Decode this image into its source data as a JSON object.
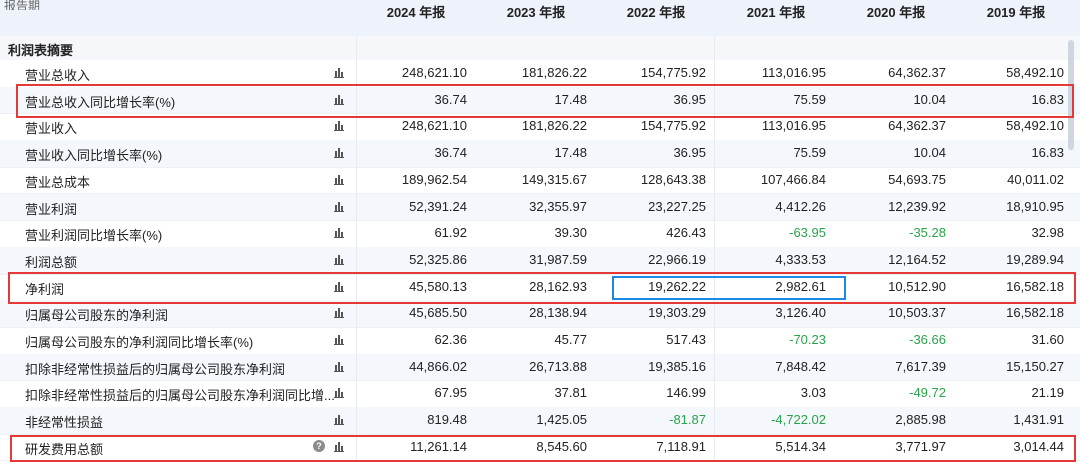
{
  "header": {
    "top_left_clipped": "报告期",
    "years": [
      "2024 年报",
      "2023 年报",
      "2022 年报",
      "2021 年报",
      "2020 年报",
      "2019 年报"
    ]
  },
  "section_title": "利润表摘要",
  "rows": [
    {
      "label": "营业总收入",
      "values": [
        "248,621.10",
        "181,826.22",
        "154,775.92",
        "113,016.95",
        "64,362.37",
        "58,492.10"
      ],
      "highlight": false
    },
    {
      "label": "营业总收入同比增长率(%)",
      "values": [
        "36.74",
        "17.48",
        "36.95",
        "75.59",
        "10.04",
        "16.83"
      ],
      "highlight": true
    },
    {
      "label": "营业收入",
      "values": [
        "248,621.10",
        "181,826.22",
        "154,775.92",
        "113,016.95",
        "64,362.37",
        "58,492.10"
      ],
      "highlight": false
    },
    {
      "label": "营业收入同比增长率(%)",
      "values": [
        "36.74",
        "17.48",
        "36.95",
        "75.59",
        "10.04",
        "16.83"
      ],
      "highlight": false
    },
    {
      "label": "营业总成本",
      "values": [
        "189,962.54",
        "149,315.67",
        "128,643.38",
        "107,466.84",
        "54,693.75",
        "40,011.02"
      ],
      "highlight": false
    },
    {
      "label": "营业利润",
      "values": [
        "52,391.24",
        "32,355.97",
        "23,227.25",
        "4,412.26",
        "12,239.92",
        "18,910.95"
      ],
      "highlight": false
    },
    {
      "label": "营业利润同比增长率(%)",
      "values": [
        "61.92",
        "39.30",
        "426.43",
        "-63.95",
        "-35.28",
        "32.98"
      ],
      "highlight": false
    },
    {
      "label": "利润总额",
      "values": [
        "52,325.86",
        "31,987.59",
        "22,966.19",
        "4,333.53",
        "12,164.52",
        "19,289.94"
      ],
      "highlight": false
    },
    {
      "label": "净利润",
      "values": [
        "45,580.13",
        "28,162.93",
        "19,262.22",
        "2,982.61",
        "10,512.90",
        "16,582.18"
      ],
      "highlight": true
    },
    {
      "label": "归属母公司股东的净利润",
      "values": [
        "45,685.50",
        "28,138.94",
        "19,303.29",
        "3,126.40",
        "10,503.37",
        "16,582.18"
      ],
      "highlight": false
    },
    {
      "label": "归属母公司股东的净利润同比增长率(%)",
      "values": [
        "62.36",
        "45.77",
        "517.43",
        "-70.23",
        "-36.66",
        "31.60"
      ],
      "highlight": false
    },
    {
      "label": "扣除非经常性损益后的归属母公司股东净利润",
      "values": [
        "44,866.02",
        "26,713.88",
        "19,385.16",
        "7,848.42",
        "7,617.39",
        "15,150.27"
      ],
      "highlight": false
    },
    {
      "label": "扣除非经常性损益后的归属母公司股东净利润同比增...",
      "values": [
        "67.95",
        "37.81",
        "146.99",
        "3.03",
        "-49.72",
        "21.19"
      ],
      "highlight": false
    },
    {
      "label": "非经常性损益",
      "values": [
        "819.48",
        "1,425.05",
        "-81.87",
        "-4,722.02",
        "2,885.98",
        "1,431.91"
      ],
      "highlight": false
    },
    {
      "label": "研发费用总额",
      "values": [
        "11,261.14",
        "8,545.60",
        "7,118.91",
        "5,514.34",
        "3,771.97",
        "3,014.44"
      ],
      "highlight": true,
      "help": true
    }
  ],
  "icons": {
    "chart": "bar-chart-icon",
    "help": "help-icon"
  },
  "colors": {
    "negative": "#2aa24c",
    "highlight_red": "#e53935",
    "highlight_blue": "#1e88e5",
    "header_bg": "#eef3fb"
  }
}
